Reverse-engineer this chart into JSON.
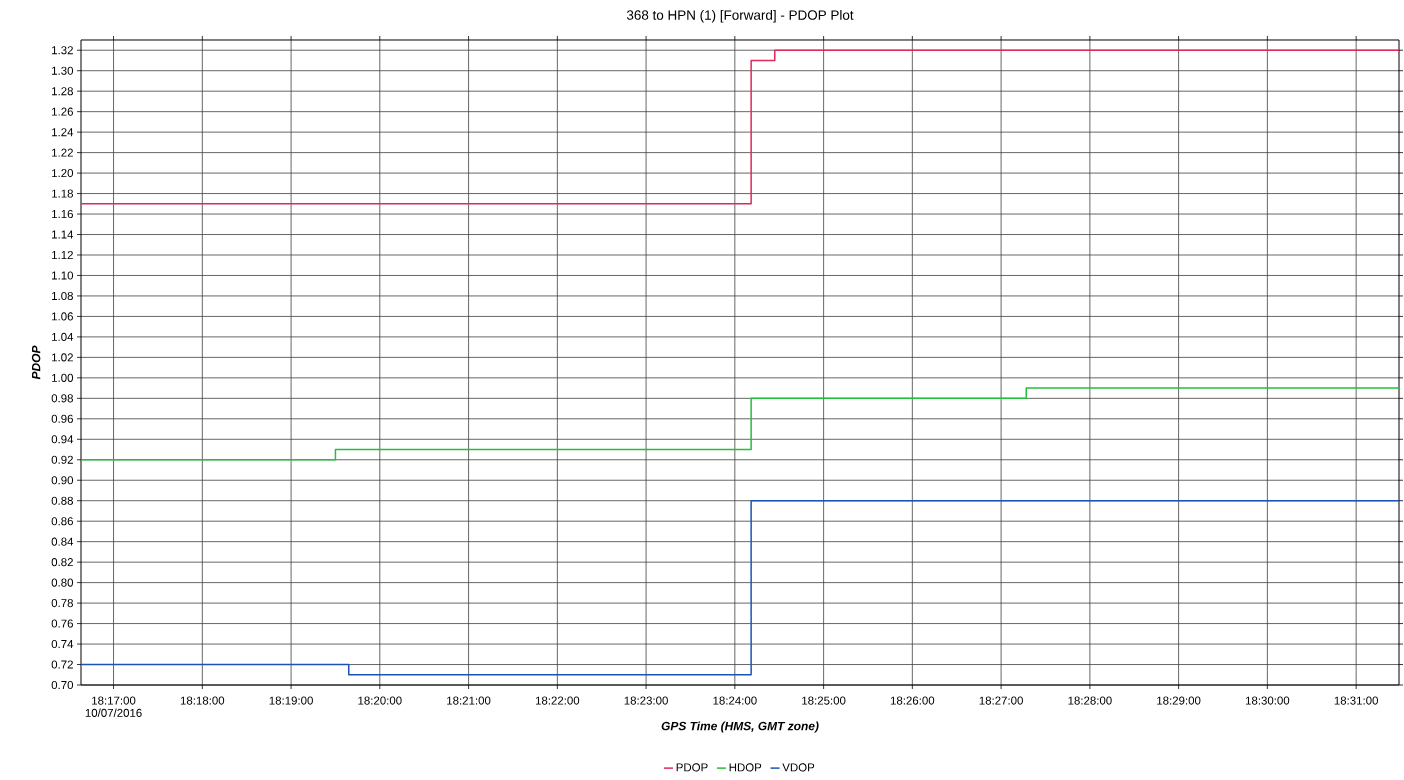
{
  "chart_data": {
    "type": "step",
    "title": "368 to HPN (1) [Forward] - PDOP Plot",
    "xlabel": "GPS Time (HMS, GMT zone)",
    "ylabel": "PDOP",
    "annotations": [
      "10/07/2016"
    ],
    "xlim": [
      18.27722,
      18.52472
    ],
    "xticks": [
      {
        "value": 18.28333,
        "label": "18:17:00"
      },
      {
        "value": 18.3,
        "label": "18:18:00"
      },
      {
        "value": 18.31667,
        "label": "18:19:00"
      },
      {
        "value": 18.33333,
        "label": "18:20:00"
      },
      {
        "value": 18.35,
        "label": "18:21:00"
      },
      {
        "value": 18.36667,
        "label": "18:22:00"
      },
      {
        "value": 18.38333,
        "label": "18:23:00"
      },
      {
        "value": 18.4,
        "label": "18:24:00"
      },
      {
        "value": 18.41667,
        "label": "18:25:00"
      },
      {
        "value": 18.43333,
        "label": "18:26:00"
      },
      {
        "value": 18.45,
        "label": "18:27:00"
      },
      {
        "value": 18.46667,
        "label": "18:28:00"
      },
      {
        "value": 18.48333,
        "label": "18:29:00"
      },
      {
        "value": 18.5,
        "label": "18:30:00"
      },
      {
        "value": 18.51667,
        "label": "18:31:00"
      }
    ],
    "ylim": [
      0.7,
      1.33
    ],
    "yticks": [
      {
        "value": 0.7,
        "label": "0.70"
      },
      {
        "value": 0.72,
        "label": "0.72"
      },
      {
        "value": 0.74,
        "label": "0.74"
      },
      {
        "value": 0.76,
        "label": "0.76"
      },
      {
        "value": 0.78,
        "label": "0.78"
      },
      {
        "value": 0.8,
        "label": "0.80"
      },
      {
        "value": 0.82,
        "label": "0.82"
      },
      {
        "value": 0.84,
        "label": "0.84"
      },
      {
        "value": 0.86,
        "label": "0.86"
      },
      {
        "value": 0.88,
        "label": "0.88"
      },
      {
        "value": 0.9,
        "label": "0.90"
      },
      {
        "value": 0.92,
        "label": "0.92"
      },
      {
        "value": 0.94,
        "label": "0.94"
      },
      {
        "value": 0.96,
        "label": "0.96"
      },
      {
        "value": 0.98,
        "label": "0.98"
      },
      {
        "value": 1.0,
        "label": "1.00"
      },
      {
        "value": 1.02,
        "label": "1.02"
      },
      {
        "value": 1.04,
        "label": "1.04"
      },
      {
        "value": 1.06,
        "label": "1.06"
      },
      {
        "value": 1.08,
        "label": "1.08"
      },
      {
        "value": 1.1,
        "label": "1.10"
      },
      {
        "value": 1.12,
        "label": "1.12"
      },
      {
        "value": 1.14,
        "label": "1.14"
      },
      {
        "value": 1.16,
        "label": "1.16"
      },
      {
        "value": 1.18,
        "label": "1.18"
      },
      {
        "value": 1.2,
        "label": "1.20"
      },
      {
        "value": 1.22,
        "label": "1.22"
      },
      {
        "value": 1.24,
        "label": "1.24"
      },
      {
        "value": 1.26,
        "label": "1.26"
      },
      {
        "value": 1.28,
        "label": "1.28"
      },
      {
        "value": 1.3,
        "label": "1.30"
      },
      {
        "value": 1.32,
        "label": "1.32"
      }
    ],
    "grid": true,
    "legend": "bottom",
    "marker": "none",
    "line_style": "solid",
    "series": [
      {
        "name": "PDOP",
        "color": "#dc2a5a",
        "x": [
          18.27722,
          18.40306,
          18.4075,
          18.52472
        ],
        "values": [
          1.17,
          1.31,
          1.32,
          1.32
        ]
      },
      {
        "name": "HDOP",
        "color": "#22c03c",
        "x": [
          18.27722,
          18.325,
          18.40306,
          18.45472,
          18.52472
        ],
        "values": [
          0.92,
          0.93,
          0.98,
          0.99,
          0.99
        ]
      },
      {
        "name": "VDOP",
        "color": "#1c54b4",
        "x": [
          18.27722,
          18.3275,
          18.40306,
          18.52472
        ],
        "values": [
          0.72,
          0.71,
          0.88,
          0.88
        ]
      }
    ]
  }
}
